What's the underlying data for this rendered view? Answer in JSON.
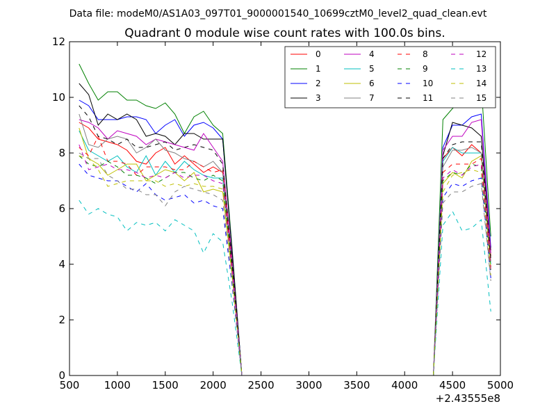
{
  "chart_data": {
    "type": "line",
    "suptitle": "Data file: modeM0/AS1A03_097T01_9000001540_10699cztM0_level2_quad_clean.evt",
    "title": "Quadrant 0 module wise count rates with 100.0s bins.",
    "xlabel": "",
    "ylabel": "",
    "x_offset_label": "+2.43555e8",
    "xlim": [
      500,
      5000
    ],
    "ylim": [
      0,
      12
    ],
    "xticks": [
      500,
      1000,
      1500,
      2000,
      2500,
      3000,
      3500,
      4000,
      4500,
      5000
    ],
    "yticks": [
      0,
      2,
      4,
      6,
      8,
      10,
      12
    ],
    "grid": false,
    "legend": {
      "placement": "top-right",
      "columns": 4
    },
    "x": [
      600,
      700,
      800,
      900,
      1000,
      1100,
      1200,
      1300,
      1400,
      1500,
      1600,
      1700,
      1800,
      1900,
      2000,
      2100,
      2200,
      2300,
      2400,
      2500,
      2600,
      2700,
      2800,
      2900,
      3000,
      3100,
      3200,
      3300,
      3400,
      3500,
      3600,
      3700,
      3800,
      3900,
      4000,
      4100,
      4200,
      4300,
      4400,
      4500,
      4600,
      4700,
      4800,
      4900
    ],
    "series": [
      {
        "name": "0",
        "color": "#ff0000",
        "dash": "solid",
        "values": [
          9.1,
          8.9,
          8.5,
          8.4,
          8.3,
          8.1,
          7.7,
          7.6,
          8.0,
          8.2,
          7.6,
          7.9,
          7.6,
          7.3,
          7.5,
          7.3,
          4.0,
          0,
          0,
          0,
          0,
          0,
          0,
          0,
          0,
          0,
          0,
          0,
          0,
          0,
          0,
          0,
          0,
          0,
          0,
          0,
          0,
          0,
          7.8,
          8.2,
          7.9,
          8.3,
          8.0,
          4.3
        ]
      },
      {
        "name": "1",
        "color": "#008000",
        "dash": "solid",
        "values": [
          11.2,
          10.5,
          9.9,
          10.2,
          10.2,
          9.9,
          9.9,
          9.7,
          9.6,
          9.8,
          9.4,
          8.7,
          9.3,
          9.5,
          9.0,
          8.7,
          4.5,
          0,
          0,
          0,
          0,
          0,
          0,
          0,
          0,
          0,
          0,
          0,
          0,
          0,
          0,
          0,
          0,
          0,
          0,
          0,
          0,
          0,
          9.2,
          9.6,
          9.9,
          10.0,
          10.5,
          5.0
        ]
      },
      {
        "name": "2",
        "color": "#0000ff",
        "dash": "solid",
        "values": [
          9.9,
          9.7,
          9.2,
          9.2,
          9.2,
          9.3,
          9.3,
          9.2,
          8.7,
          9.0,
          9.2,
          8.6,
          9.0,
          9.1,
          8.9,
          8.5,
          4.4,
          0,
          0,
          0,
          0,
          0,
          0,
          0,
          0,
          0,
          0,
          0,
          0,
          0,
          0,
          0,
          0,
          0,
          0,
          0,
          0,
          0,
          8.2,
          9.0,
          9.0,
          9.3,
          9.4,
          4.6
        ]
      },
      {
        "name": "3",
        "color": "#000000",
        "dash": "solid",
        "values": [
          10.5,
          10.1,
          9.0,
          9.4,
          9.2,
          9.4,
          9.2,
          8.6,
          8.7,
          8.6,
          8.3,
          8.7,
          8.7,
          8.5,
          8.5,
          8.5,
          4.4,
          0,
          0,
          0,
          0,
          0,
          0,
          0,
          0,
          0,
          0,
          0,
          0,
          0,
          0,
          0,
          0,
          0,
          0,
          0,
          0,
          0,
          7.9,
          9.1,
          9.0,
          8.9,
          8.6,
          4.5
        ]
      },
      {
        "name": "4",
        "color": "#bf00bf",
        "dash": "solid",
        "values": [
          9.2,
          9.1,
          8.9,
          8.5,
          8.8,
          8.7,
          8.6,
          8.3,
          8.5,
          8.4,
          8.3,
          8.2,
          8.1,
          8.7,
          8.2,
          7.7,
          4.1,
          0,
          0,
          0,
          0,
          0,
          0,
          0,
          0,
          0,
          0,
          0,
          0,
          0,
          0,
          0,
          0,
          0,
          0,
          0,
          0,
          0,
          8.1,
          8.6,
          8.6,
          9.1,
          9.2,
          4.4
        ]
      },
      {
        "name": "5",
        "color": "#00bfbf",
        "dash": "solid",
        "values": [
          8.8,
          8.1,
          7.9,
          7.7,
          7.9,
          7.5,
          7.3,
          7.9,
          7.2,
          7.7,
          7.3,
          7.7,
          7.4,
          7.2,
          7.1,
          7.1,
          3.9,
          0,
          0,
          0,
          0,
          0,
          0,
          0,
          0,
          0,
          0,
          0,
          0,
          0,
          0,
          0,
          0,
          0,
          0,
          0,
          0,
          0,
          7.7,
          8.2,
          8.0,
          8.0,
          8.0,
          4.0
        ]
      },
      {
        "name": "6",
        "color": "#bfbf00",
        "dash": "solid",
        "values": [
          8.9,
          7.8,
          7.6,
          7.2,
          7.4,
          7.6,
          7.6,
          7.0,
          7.2,
          7.4,
          7.3,
          7.0,
          7.3,
          6.6,
          6.7,
          6.6,
          3.6,
          0,
          0,
          0,
          0,
          0,
          0,
          0,
          0,
          0,
          0,
          0,
          0,
          0,
          0,
          0,
          0,
          0,
          0,
          0,
          0,
          0,
          6.9,
          7.3,
          7.1,
          7.7,
          7.9,
          3.8
        ]
      },
      {
        "name": "7",
        "color": "#808080",
        "dash": "solid",
        "values": [
          9.4,
          8.3,
          8.2,
          8.5,
          8.6,
          8.5,
          8.0,
          8.2,
          8.5,
          8.1,
          8.0,
          7.8,
          7.7,
          7.5,
          7.7,
          7.3,
          3.9,
          0,
          0,
          0,
          0,
          0,
          0,
          0,
          0,
          0,
          0,
          0,
          0,
          0,
          0,
          0,
          0,
          0,
          0,
          0,
          0,
          0,
          7.5,
          8.1,
          8.1,
          8.2,
          8.0,
          4.1
        ]
      },
      {
        "name": "8",
        "color": "#ff0000",
        "dash": "dashed",
        "values": [
          8.2,
          7.9,
          8.6,
          7.7,
          7.7,
          7.6,
          7.2,
          7.5,
          7.5,
          7.5,
          7.4,
          7.4,
          7.7,
          7.5,
          7.3,
          7.4,
          3.8,
          0,
          0,
          0,
          0,
          0,
          0,
          0,
          0,
          0,
          0,
          0,
          0,
          0,
          0,
          0,
          0,
          0,
          0,
          0,
          0,
          0,
          7.3,
          7.6,
          7.6,
          7.6,
          7.8,
          3.9
        ]
      },
      {
        "name": "9",
        "color": "#008000",
        "dash": "dashed",
        "values": [
          7.9,
          7.6,
          7.5,
          7.7,
          7.5,
          7.2,
          7.2,
          7.1,
          6.9,
          7.1,
          7.3,
          7.3,
          7.1,
          7.0,
          7.2,
          7.0,
          3.7,
          0,
          0,
          0,
          0,
          0,
          0,
          0,
          0,
          0,
          0,
          0,
          0,
          0,
          0,
          0,
          0,
          0,
          0,
          0,
          0,
          0,
          7.0,
          7.3,
          7.2,
          7.6,
          7.5,
          3.8
        ]
      },
      {
        "name": "10",
        "color": "#0000ff",
        "dash": "dashed",
        "values": [
          7.6,
          7.2,
          7.1,
          7.0,
          7.0,
          6.8,
          6.6,
          6.9,
          6.5,
          6.3,
          6.4,
          6.5,
          6.2,
          6.3,
          6.1,
          6.0,
          3.2,
          0,
          0,
          0,
          0,
          0,
          0,
          0,
          0,
          0,
          0,
          0,
          0,
          0,
          0,
          0,
          0,
          0,
          0,
          0,
          0,
          0,
          6.4,
          6.9,
          6.8,
          7.0,
          7.1,
          3.5
        ]
      },
      {
        "name": "11",
        "color": "#000000",
        "dash": "dashed",
        "values": [
          9.7,
          9.3,
          8.6,
          8.5,
          8.3,
          8.5,
          8.2,
          8.2,
          8.3,
          8.4,
          8.1,
          8.2,
          8.3,
          8.2,
          8.1,
          7.6,
          4.0,
          0,
          0,
          0,
          0,
          0,
          0,
          0,
          0,
          0,
          0,
          0,
          0,
          0,
          0,
          0,
          0,
          0,
          0,
          0,
          0,
          0,
          7.8,
          8.3,
          8.4,
          8.4,
          8.4,
          4.2
        ]
      },
      {
        "name": "12",
        "color": "#bf00bf",
        "dash": "dashed",
        "values": [
          8.3,
          7.4,
          7.5,
          7.6,
          7.4,
          7.4,
          7.3,
          7.1,
          7.2,
          7.1,
          7.3,
          7.1,
          7.2,
          7.2,
          7.0,
          6.9,
          3.7,
          0,
          0,
          0,
          0,
          0,
          0,
          0,
          0,
          0,
          0,
          0,
          0,
          0,
          0,
          0,
          0,
          0,
          0,
          0,
          0,
          0,
          7.1,
          7.4,
          7.2,
          7.5,
          7.6,
          3.8
        ]
      },
      {
        "name": "13",
        "color": "#00bfbf",
        "dash": "dashed",
        "values": [
          6.3,
          5.8,
          6.0,
          5.8,
          5.7,
          5.2,
          5.5,
          5.4,
          5.5,
          5.2,
          5.6,
          5.4,
          5.2,
          4.4,
          5.1,
          4.8,
          2.6,
          0,
          0,
          0,
          0,
          0,
          0,
          0,
          0,
          0,
          0,
          0,
          0,
          0,
          0,
          0,
          0,
          0,
          0,
          0,
          0,
          0,
          5.4,
          5.9,
          5.2,
          5.3,
          5.6,
          2.3
        ]
      },
      {
        "name": "14",
        "color": "#bfbf00",
        "dash": "dashed",
        "values": [
          7.9,
          7.8,
          7.4,
          6.8,
          6.9,
          7.0,
          7.0,
          7.0,
          7.0,
          6.8,
          6.9,
          6.8,
          6.9,
          6.8,
          6.8,
          6.7,
          3.5,
          0,
          0,
          0,
          0,
          0,
          0,
          0,
          0,
          0,
          0,
          0,
          0,
          0,
          0,
          0,
          0,
          0,
          0,
          0,
          0,
          0,
          6.6,
          7.2,
          7.3,
          7.4,
          7.3,
          3.6
        ]
      },
      {
        "name": "15",
        "color": "#808080",
        "dash": "dashed",
        "values": [
          8.0,
          7.8,
          7.8,
          7.2,
          7.0,
          6.7,
          6.7,
          6.5,
          6.5,
          6.1,
          6.6,
          6.8,
          6.7,
          6.6,
          6.5,
          6.3,
          3.3,
          0,
          0,
          0,
          0,
          0,
          0,
          0,
          0,
          0,
          0,
          0,
          0,
          0,
          0,
          0,
          0,
          0,
          0,
          0,
          0,
          0,
          6.2,
          6.6,
          6.6,
          6.8,
          6.9,
          3.4
        ]
      }
    ]
  }
}
